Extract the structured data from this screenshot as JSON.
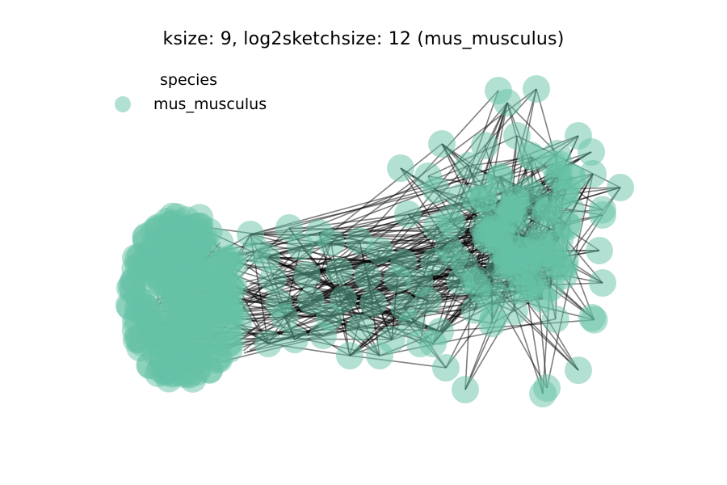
{
  "figure": {
    "title": "ksize: 9, log2sketchsize: 12 (mus_musculus)"
  },
  "legend": {
    "title": "species",
    "entries": [
      {
        "label": "mus_musculus",
        "color": "#66c2a5"
      }
    ]
  },
  "colors": {
    "node": "#66c2a5",
    "edge": "#000000",
    "background": "#ffffff"
  }
}
